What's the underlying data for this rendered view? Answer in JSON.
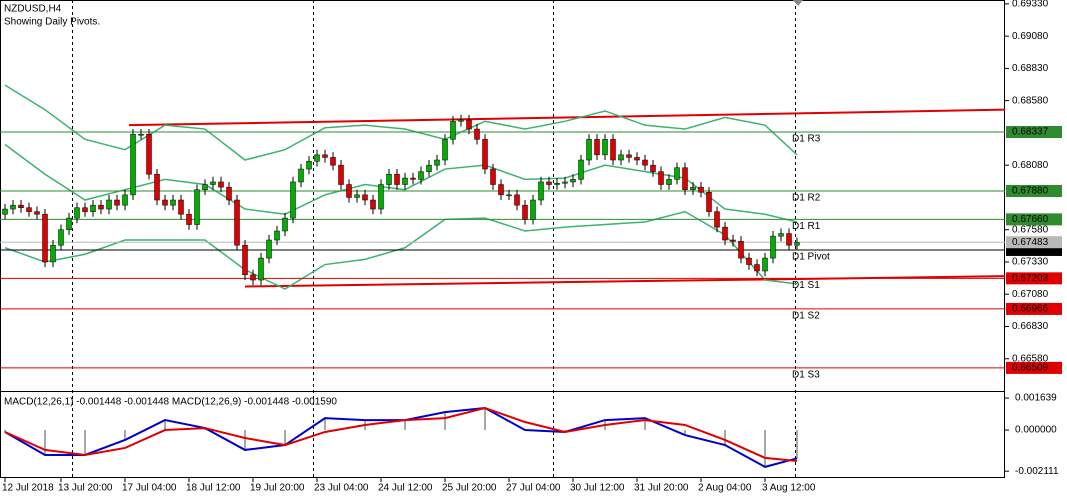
{
  "chart_data": [
    {
      "type": "candlestick",
      "title": "NZDUSD,H4",
      "subtitle": "Showing Daily Pivots.",
      "open": [
        0.677,
        0.6774,
        0.6777,
        0.6775,
        0.6772,
        0.677,
        0.6733,
        0.6746,
        0.6758,
        0.6767,
        0.6775,
        0.6772,
        0.6777,
        0.6774,
        0.6781,
        0.6777,
        0.6785,
        0.6832,
        0.6832,
        0.6801,
        0.6781,
        0.6777,
        0.6781,
        0.677,
        0.6762,
        0.6789,
        0.6793,
        0.6795,
        0.6791,
        0.6781,
        0.6746,
        0.6723,
        0.6719,
        0.6736,
        0.675,
        0.6757,
        0.6767,
        0.6795,
        0.6805,
        0.6811,
        0.6816,
        0.6814,
        0.6808,
        0.6793,
        0.6783,
        0.6785,
        0.6781,
        0.6774,
        0.6793,
        0.6801,
        0.6793,
        0.6798,
        0.6797,
        0.6803,
        0.6808,
        0.6812,
        0.6828,
        0.6842,
        0.6843,
        0.6836,
        0.6828,
        0.6805,
        0.6793,
        0.6785,
        0.6785,
        0.6777,
        0.6766,
        0.6781,
        0.6795,
        0.6793,
        0.6794,
        0.6795,
        0.6797,
        0.6812,
        0.6828,
        0.6816,
        0.6828,
        0.6812,
        0.6816,
        0.6814,
        0.6812,
        0.6808,
        0.6803,
        0.6793,
        0.6797,
        0.6806,
        0.6789,
        0.6791,
        0.6787,
        0.6772,
        0.676,
        0.675,
        0.6749,
        0.6736,
        0.6731,
        0.6726,
        0.6736,
        0.6753,
        0.6755,
        0.6746
      ],
      "high": [
        0.6778,
        0.6781,
        0.6781,
        0.6779,
        0.6776,
        0.6774,
        0.675,
        0.6762,
        0.6771,
        0.6779,
        0.6779,
        0.6781,
        0.6781,
        0.6785,
        0.6785,
        0.6789,
        0.6836,
        0.6836,
        0.6836,
        0.6805,
        0.6785,
        0.6785,
        0.6785,
        0.6774,
        0.6793,
        0.6797,
        0.6799,
        0.6799,
        0.6795,
        0.6785,
        0.675,
        0.6727,
        0.674,
        0.6754,
        0.6761,
        0.6771,
        0.6799,
        0.6809,
        0.6815,
        0.682,
        0.682,
        0.6818,
        0.6812,
        0.6797,
        0.6789,
        0.6789,
        0.6785,
        0.6797,
        0.6805,
        0.6805,
        0.6802,
        0.6802,
        0.6807,
        0.6812,
        0.6816,
        0.6832,
        0.6846,
        0.6847,
        0.6847,
        0.684,
        0.6832,
        0.6809,
        0.6797,
        0.6789,
        0.6789,
        0.6781,
        0.6785,
        0.6799,
        0.6799,
        0.6798,
        0.6799,
        0.6801,
        0.6816,
        0.6832,
        0.6832,
        0.6832,
        0.6832,
        0.682,
        0.682,
        0.6818,
        0.6816,
        0.6812,
        0.6807,
        0.6801,
        0.681,
        0.681,
        0.6795,
        0.6795,
        0.6791,
        0.6776,
        0.6764,
        0.6754,
        0.6753,
        0.674,
        0.6735,
        0.674,
        0.6757,
        0.6759,
        0.6759,
        0.6752
      ],
      "low": [
        0.6766,
        0.677,
        0.6771,
        0.6768,
        0.6766,
        0.6729,
        0.6729,
        0.6742,
        0.6754,
        0.6763,
        0.6768,
        0.6768,
        0.677,
        0.677,
        0.6773,
        0.6773,
        0.6781,
        0.6828,
        0.6797,
        0.6777,
        0.6773,
        0.6773,
        0.6766,
        0.6758,
        0.6758,
        0.6785,
        0.6789,
        0.6787,
        0.6777,
        0.6742,
        0.6719,
        0.6715,
        0.6715,
        0.6732,
        0.6746,
        0.6753,
        0.6763,
        0.6791,
        0.6801,
        0.6807,
        0.681,
        0.6804,
        0.6789,
        0.6779,
        0.6779,
        0.6777,
        0.677,
        0.677,
        0.6789,
        0.6789,
        0.6789,
        0.6793,
        0.6793,
        0.6799,
        0.6804,
        0.6808,
        0.6824,
        0.6838,
        0.6832,
        0.6824,
        0.6801,
        0.6789,
        0.6781,
        0.6781,
        0.6773,
        0.6762,
        0.6762,
        0.6777,
        0.6789,
        0.6789,
        0.679,
        0.6791,
        0.6793,
        0.6808,
        0.6812,
        0.6812,
        0.6808,
        0.6808,
        0.681,
        0.6808,
        0.6804,
        0.6799,
        0.6789,
        0.6789,
        0.6793,
        0.6785,
        0.6785,
        0.6783,
        0.6768,
        0.6756,
        0.6746,
        0.6745,
        0.6732,
        0.6727,
        0.6722,
        0.6722,
        0.6732,
        0.6749,
        0.6742,
        0.6742
      ],
      "close": [
        0.6774,
        0.6777,
        0.6775,
        0.6772,
        0.677,
        0.6733,
        0.6746,
        0.6758,
        0.6767,
        0.6775,
        0.6772,
        0.6777,
        0.6774,
        0.6781,
        0.6777,
        0.6785,
        0.6832,
        0.6832,
        0.6801,
        0.6781,
        0.6777,
        0.6781,
        0.677,
        0.6762,
        0.6789,
        0.6793,
        0.6795,
        0.6791,
        0.6781,
        0.6746,
        0.6723,
        0.6719,
        0.6736,
        0.675,
        0.6757,
        0.6767,
        0.6795,
        0.6805,
        0.6811,
        0.6816,
        0.6814,
        0.6808,
        0.6793,
        0.6783,
        0.6785,
        0.6781,
        0.6774,
        0.6793,
        0.6801,
        0.6793,
        0.6798,
        0.6797,
        0.6803,
        0.6808,
        0.6812,
        0.6828,
        0.6842,
        0.6843,
        0.6836,
        0.6828,
        0.6805,
        0.6793,
        0.6785,
        0.6785,
        0.6777,
        0.6766,
        0.6781,
        0.6795,
        0.6793,
        0.6794,
        0.6795,
        0.6797,
        0.6812,
        0.6828,
        0.6816,
        0.6828,
        0.6812,
        0.6816,
        0.6814,
        0.6812,
        0.6808,
        0.6803,
        0.6793,
        0.6797,
        0.6806,
        0.6789,
        0.6791,
        0.6787,
        0.6772,
        0.676,
        0.675,
        0.6749,
        0.6736,
        0.6731,
        0.6726,
        0.6736,
        0.6753,
        0.6755,
        0.6746,
        0.6748
      ],
      "up_color": "#00b000",
      "down_color": "#e00000",
      "ylim": [
        0.6633,
        0.6936
      ],
      "yticks": [
        {
          "value": 0.6933,
          "label": "0.69330"
        },
        {
          "value": 0.6908,
          "label": "0.69080"
        },
        {
          "value": 0.6883,
          "label": "0.68830"
        },
        {
          "value": 0.6858,
          "label": "0.68580"
        },
        {
          "value": 0.6808,
          "label": "0.68080"
        },
        {
          "value": 0.6758,
          "label": "0.67580"
        },
        {
          "value": 0.6733,
          "label": "0.67330"
        },
        {
          "value": 0.6708,
          "label": "0.67080"
        },
        {
          "value": 0.6683,
          "label": "0.66830"
        },
        {
          "value": 0.6658,
          "label": "0.66580"
        }
      ],
      "xticks": [
        {
          "value": 0,
          "label": "12 Jul 2018"
        },
        {
          "value": 7,
          "label": "13 Jul 20:00"
        },
        {
          "value": 15,
          "label": "17 Jul 04:00"
        },
        {
          "value": 23,
          "label": "18 Jul 12:00"
        },
        {
          "value": 31,
          "label": "19 Jul 20:00"
        },
        {
          "value": 39,
          "label": "23 Jul 04:00"
        },
        {
          "value": 47,
          "label": "24 Jul 12:00"
        },
        {
          "value": 55,
          "label": "25 Jul 20:00"
        },
        {
          "value": 63,
          "label": "27 Jul 04:00"
        },
        {
          "value": 71,
          "label": "30 Jul 12:00"
        },
        {
          "value": 79,
          "label": "31 Jul 20:00"
        },
        {
          "value": 87,
          "label": "2 Aug 04:00"
        },
        {
          "value": 95,
          "label": "3 Aug 12:00"
        }
      ],
      "bands": {
        "color": "#3cb371",
        "index": [
          0,
          5,
          10,
          15,
          20,
          25,
          30,
          35,
          40,
          45,
          50,
          55,
          60,
          65,
          70,
          75,
          80,
          85,
          90,
          95,
          99
        ],
        "upper": [
          0.687,
          0.6851,
          0.6828,
          0.682,
          0.6839,
          0.6836,
          0.6812,
          0.682,
          0.6837,
          0.6839,
          0.6836,
          0.6828,
          0.6842,
          0.6836,
          0.6842,
          0.685,
          0.6839,
          0.6836,
          0.6845,
          0.6839,
          0.6816
        ],
        "middle": [
          0.6824,
          0.6801,
          0.6781,
          0.6789,
          0.6797,
          0.6793,
          0.6774,
          0.677,
          0.6785,
          0.6793,
          0.6789,
          0.6805,
          0.6808,
          0.6797,
          0.6798,
          0.6808,
          0.6803,
          0.6798,
          0.6774,
          0.677,
          0.6764
        ],
        "lower": [
          0.6744,
          0.6733,
          0.6739,
          0.675,
          0.675,
          0.675,
          0.6727,
          0.6712,
          0.6731,
          0.6735,
          0.6744,
          0.6766,
          0.6767,
          0.6757,
          0.676,
          0.6762,
          0.6764,
          0.6772,
          0.6754,
          0.6719,
          0.6716
        ]
      },
      "trend_lines": [
        {
          "x": [
            15.5,
            125
          ],
          "values": [
            0.6839,
            0.6851
          ],
          "color": "#e00000"
        },
        {
          "x": [
            30,
            125
          ],
          "values": [
            0.6714,
            0.6722
          ],
          "color": "#e00000"
        }
      ],
      "pivots": [
        {
          "name": "D1 R3",
          "value": 0.68337,
          "color": "#2e8b2e"
        },
        {
          "name": "D1 R2",
          "value": 0.6788,
          "value_label": "0.67880",
          "color": "#2e8b2e"
        },
        {
          "name": "D1 R1",
          "value": 0.6766,
          "value_label": "0.67660",
          "color": "#2e8b2e"
        },
        {
          "name": "D1 Pivot",
          "value": 0.67423,
          "color": "#000000"
        },
        {
          "name": "D1 S1",
          "value": 0.67203,
          "color": "#e00000"
        },
        {
          "name": "D1 S2",
          "value": 0.66966,
          "color": "#e00000"
        },
        {
          "name": "D1 S3",
          "value": 0.66509,
          "color": "#e00000"
        }
      ],
      "last_price": {
        "value": 0.67483,
        "color": "#b8b8b8"
      }
    },
    {
      "type": "line",
      "title": "MACD(12,26,1) -0.001448 -0.001448 MACD(12,26,9) -0.001448 -0.001590",
      "index": [
        0,
        5,
        10,
        15,
        20,
        25,
        30,
        35,
        40,
        45,
        50,
        55,
        60,
        65,
        70,
        75,
        80,
        85,
        90,
        95,
        99
      ],
      "series": [
        {
          "color": "#0000cc",
          "values": [
            -0.0001,
            -0.00128,
            -0.00128,
            -0.00051,
            0.00051,
            0.0001,
            -0.00102,
            -0.00077,
            0.00061,
            0.00051,
            0.00051,
            0.00092,
            0.00113,
            0.0,
            -0.0001,
            0.00051,
            0.00061,
            -0.00026,
            -0.00077,
            -0.00189,
            -0.00145
          ]
        },
        {
          "color": "#e00000",
          "values": [
            -0.0001,
            -0.00102,
            -0.00128,
            -0.00092,
            0.0,
            0.0001,
            -0.00041,
            -0.00077,
            -0.0001,
            0.00026,
            0.00051,
            0.00061,
            0.00113,
            0.00041,
            -0.0001,
            0.00026,
            0.00051,
            0.00026,
            -0.00051,
            -0.00143,
            -0.00159
          ]
        }
      ],
      "histogram_color": "#a8a8a8",
      "ylim": [
        -0.00246,
        0.00195
      ],
      "yticks": [
        0.001639,
        {
          "value": 0,
          "label": "0.000000"
        },
        -0.002111
      ]
    }
  ]
}
